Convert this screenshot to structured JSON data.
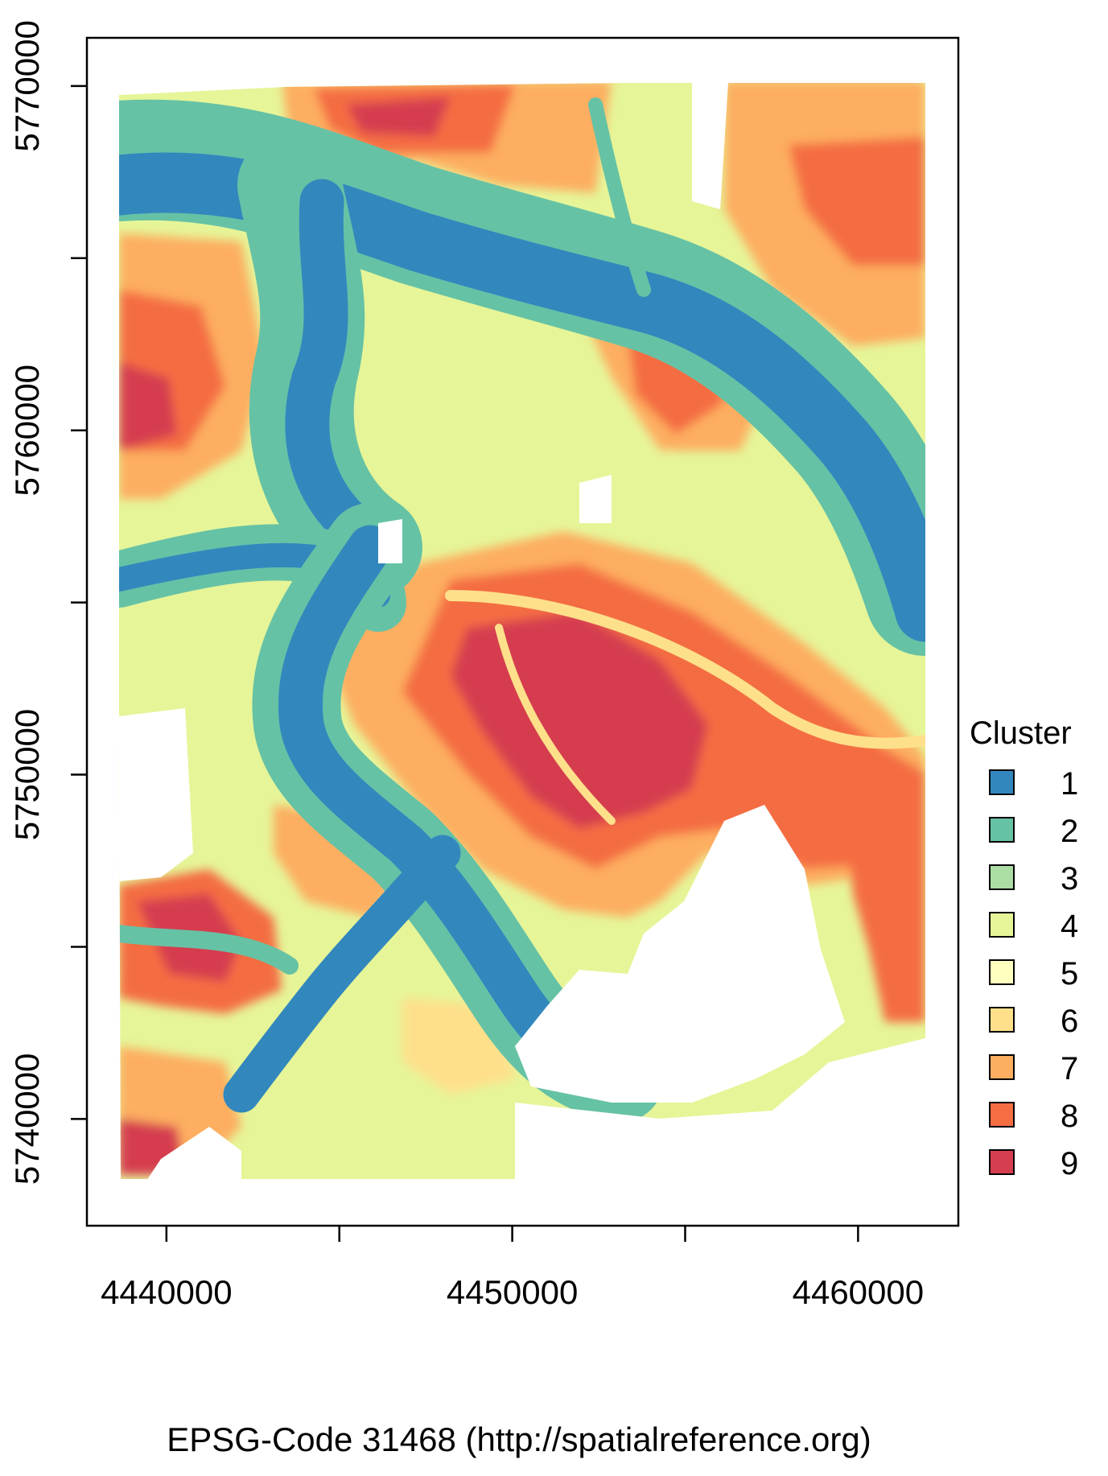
{
  "map": {
    "xlabel": "EPSG-Code 31468 (http://spatialreference.org)",
    "x_ticks": [
      4440000,
      4445000,
      4450000,
      4455000,
      4460000
    ],
    "x_tick_labels": [
      "4440000",
      "",
      "4450000",
      "",
      "4460000"
    ],
    "y_ticks": [
      5740000,
      5745000,
      5750000,
      5755000,
      5760000,
      5765000,
      5770000
    ],
    "y_tick_labels": [
      "5740000",
      "",
      "5750000",
      "",
      "5760000",
      "",
      "5770000"
    ],
    "xlim": [
      4437700,
      4462900
    ],
    "ylim": [
      5736900,
      5771400
    ]
  },
  "legend": {
    "title": "Cluster",
    "items": [
      {
        "label": "1",
        "color": "#3288bd"
      },
      {
        "label": "2",
        "color": "#66c2a5"
      },
      {
        "label": "3",
        "color": "#abdda4"
      },
      {
        "label": "4",
        "color": "#e6f598"
      },
      {
        "label": "5",
        "color": "#ffffbf"
      },
      {
        "label": "6",
        "color": "#fee08b"
      },
      {
        "label": "7",
        "color": "#fdae61"
      },
      {
        "label": "8",
        "color": "#f46d43"
      },
      {
        "label": "9",
        "color": "#d53e4f"
      }
    ]
  }
}
